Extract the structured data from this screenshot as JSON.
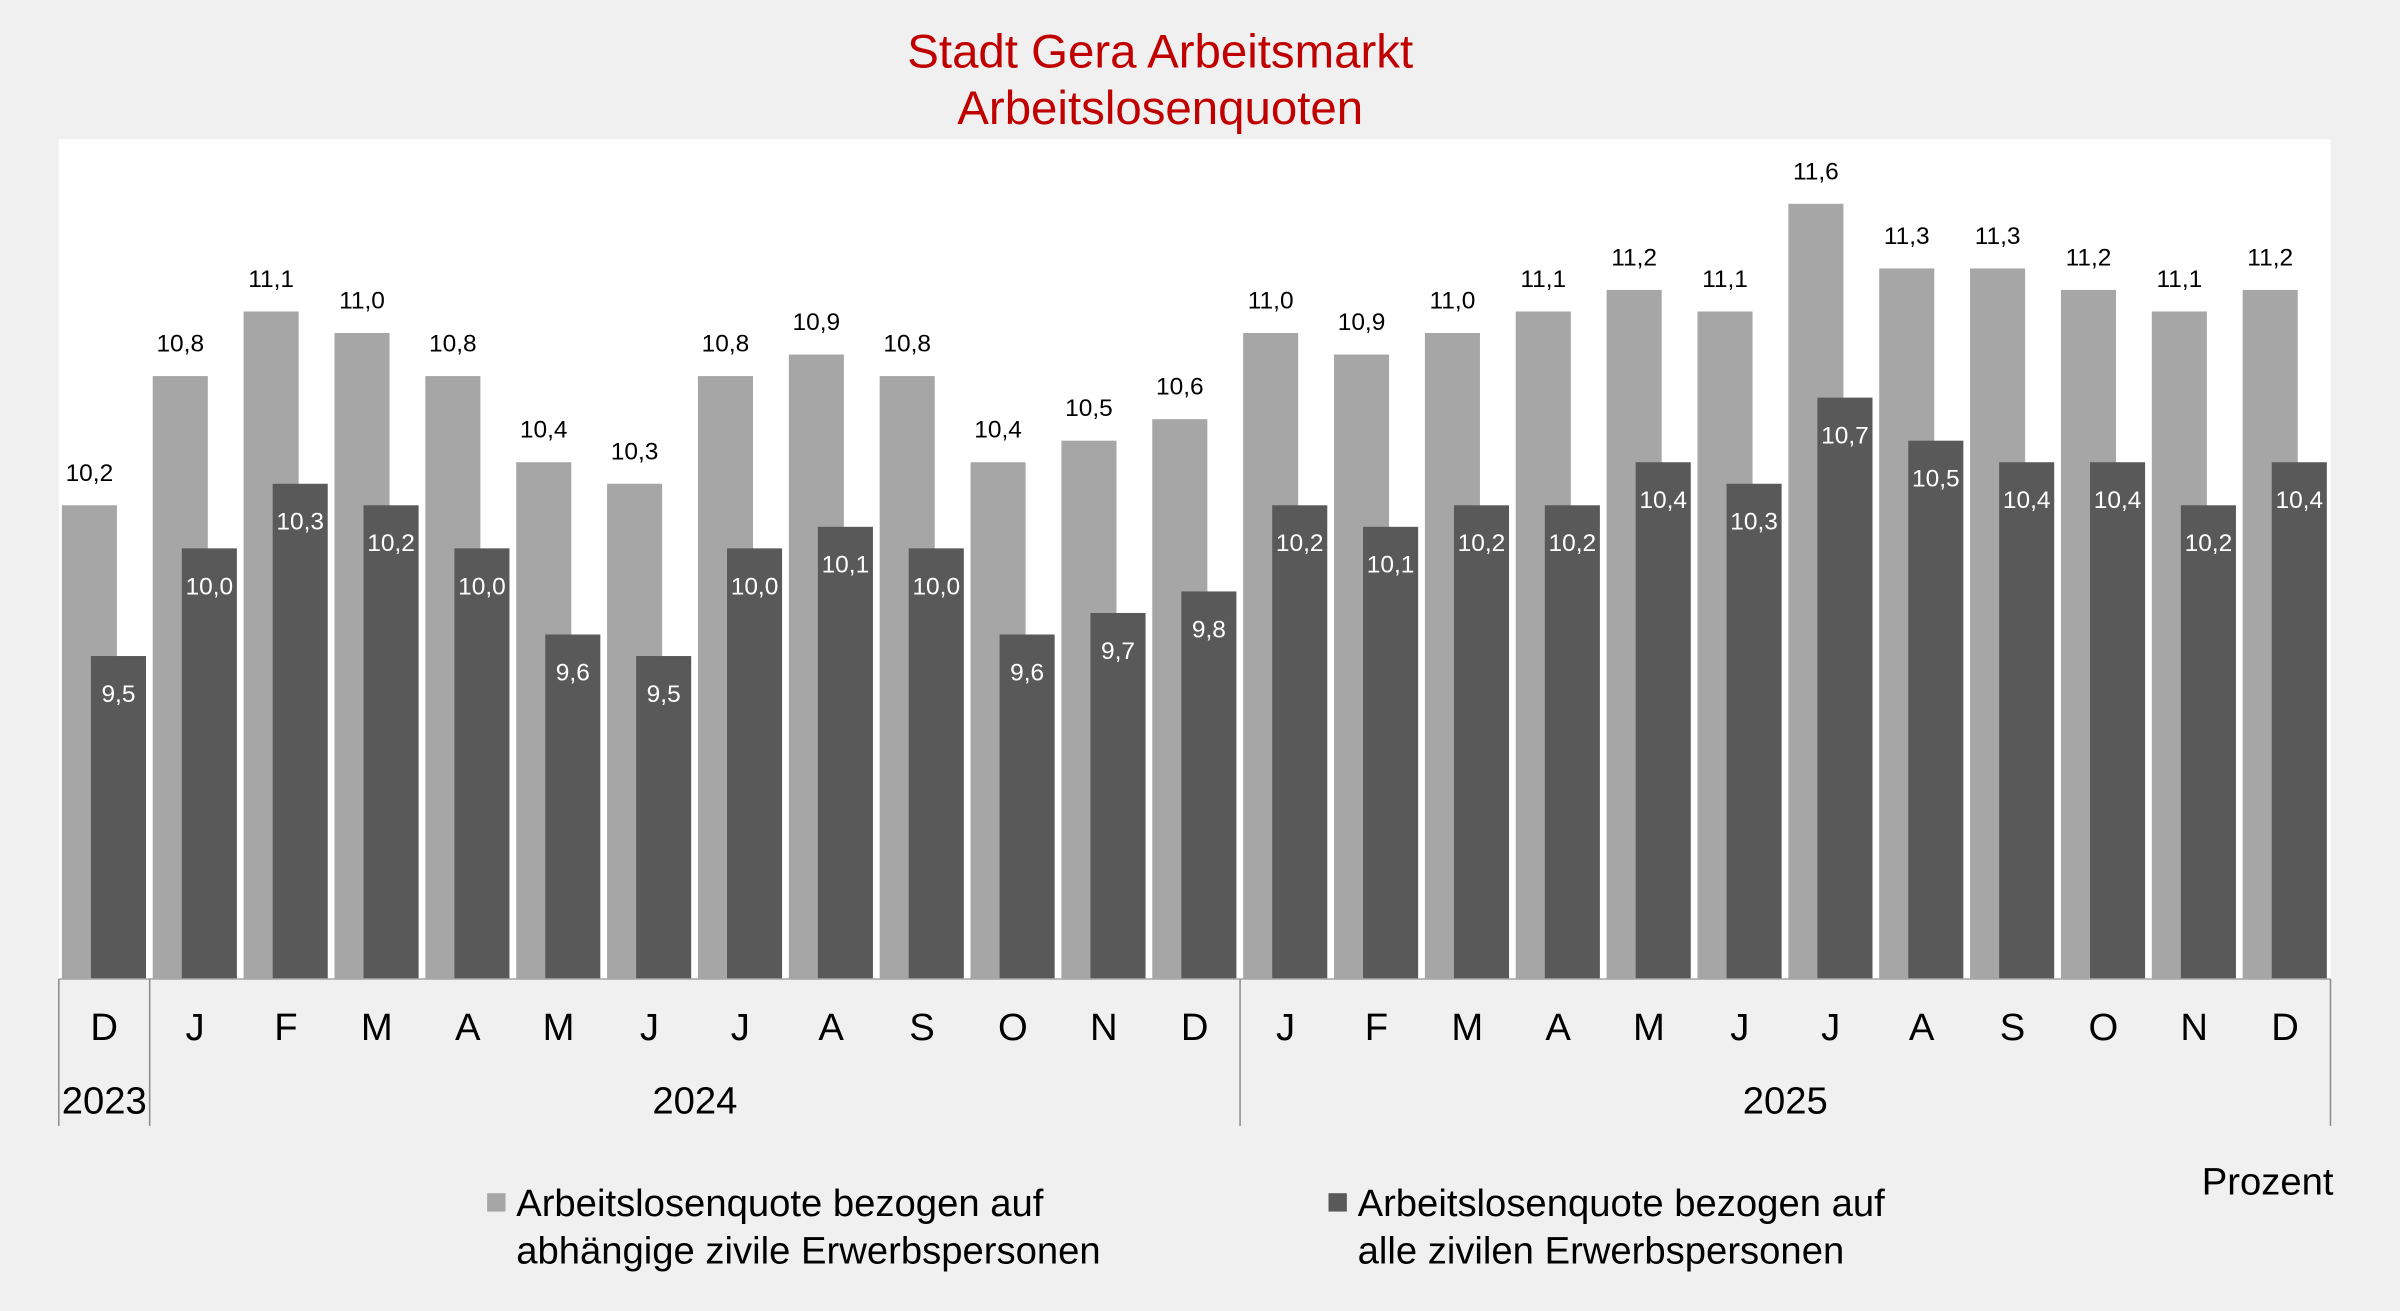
{
  "chart_data": {
    "type": "bar",
    "title": "Stadt Gera Arbeitsmarkt",
    "subtitle": "Arbeitslosenquoten",
    "unit_label": "Prozent",
    "categories": [
      "D",
      "J",
      "F",
      "M",
      "A",
      "M",
      "J",
      "J",
      "A",
      "S",
      "O",
      "N",
      "D",
      "J",
      "F",
      "M",
      "A",
      "M",
      "J",
      "J",
      "A",
      "S",
      "O",
      "N",
      "D"
    ],
    "year_groups": [
      {
        "label": "2023",
        "count": 1
      },
      {
        "label": "2024",
        "count": 12
      },
      {
        "label": "2025",
        "count": 12
      }
    ],
    "series": [
      {
        "name": "Arbeitslosenquote bezogen auf abhängige zivile Erwerbspersonen",
        "name_lines": [
          "Arbeitslosenquote bezogen auf",
          "abhängige zivile Erwerbspersonen"
        ],
        "color": "#a6a6a6",
        "values": [
          10.2,
          10.8,
          11.1,
          11.0,
          10.8,
          10.4,
          10.3,
          10.8,
          10.9,
          10.8,
          10.4,
          10.5,
          10.6,
          11.0,
          10.9,
          11.0,
          11.1,
          11.2,
          11.1,
          11.6,
          11.3,
          11.3,
          11.2,
          11.1,
          11.2
        ]
      },
      {
        "name": "Arbeitslosenquote bezogen auf alle zivilen Erwerbspersonen",
        "name_lines": [
          "Arbeitslosenquote bezogen auf",
          "alle zivilen Erwerbspersonen"
        ],
        "color": "#595959",
        "values": [
          9.5,
          10.0,
          10.3,
          10.2,
          10.0,
          9.6,
          9.5,
          10.0,
          10.1,
          10.0,
          9.6,
          9.7,
          9.8,
          10.2,
          10.1,
          10.2,
          10.2,
          10.4,
          10.3,
          10.7,
          10.5,
          10.4,
          10.4,
          10.2,
          10.4
        ]
      }
    ],
    "ylim": [
      8,
      11.9
    ],
    "decimal_separator": ",",
    "grid": false,
    "legend": "bottom",
    "title_color": "#c00000"
  }
}
